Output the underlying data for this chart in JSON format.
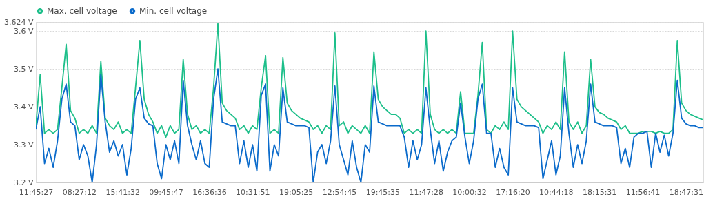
{
  "chart_data": {
    "type": "line",
    "categories": [
      "11:45:27",
      null,
      null,
      null,
      null,
      null,
      null,
      null,
      null,
      null,
      "08:27:12",
      null,
      null,
      null,
      null,
      null,
      null,
      null,
      null,
      null,
      "15:41:32",
      null,
      null,
      null,
      null,
      null,
      null,
      null,
      null,
      null,
      "09:45:47",
      null,
      null,
      null,
      null,
      null,
      null,
      null,
      null,
      null,
      "16:36:36",
      null,
      null,
      null,
      null,
      null,
      null,
      null,
      null,
      null,
      "10:31:51",
      null,
      null,
      null,
      null,
      null,
      null,
      null,
      null,
      null,
      "19:05:25",
      null,
      null,
      null,
      null,
      null,
      null,
      null,
      null,
      null,
      "12:54:45",
      null,
      null,
      null,
      null,
      null,
      null,
      null,
      null,
      null,
      "19:45:35",
      null,
      null,
      null,
      null,
      null,
      null,
      null,
      null,
      null,
      "11:47:28",
      null,
      null,
      null,
      null,
      null,
      null,
      null,
      null,
      null,
      "10:00:32",
      null,
      null,
      null,
      null,
      null,
      null,
      null,
      null,
      null,
      "17:16:20",
      null,
      null,
      null,
      null,
      null,
      null,
      null,
      null,
      null,
      "10:44:18",
      null,
      null,
      null,
      null,
      null,
      null,
      null,
      null,
      null,
      "18:15:31",
      null,
      null,
      null,
      null,
      null,
      null,
      null,
      null,
      null,
      "11:56:41",
      null,
      null,
      null,
      null,
      null,
      null,
      null,
      null,
      null,
      "18:47:31",
      null,
      null,
      null,
      null
    ],
    "series": [
      {
        "name": "Max. cell voltage",
        "color": "#1dbf8a",
        "values": [
          3.35,
          3.485,
          3.33,
          3.34,
          3.33,
          3.34,
          3.45,
          3.565,
          3.39,
          3.37,
          3.33,
          3.34,
          3.33,
          3.35,
          3.33,
          3.52,
          3.37,
          3.35,
          3.34,
          3.36,
          3.33,
          3.34,
          3.33,
          3.45,
          3.575,
          3.42,
          3.38,
          3.36,
          3.33,
          3.35,
          3.32,
          3.35,
          3.33,
          3.34,
          3.525,
          3.38,
          3.34,
          3.35,
          3.33,
          3.34,
          3.33,
          3.45,
          3.62,
          3.41,
          3.39,
          3.38,
          3.37,
          3.34,
          3.35,
          3.33,
          3.35,
          3.34,
          3.45,
          3.535,
          3.33,
          3.34,
          3.33,
          3.53,
          3.41,
          3.39,
          3.38,
          3.37,
          3.365,
          3.36,
          3.34,
          3.35,
          3.33,
          3.35,
          3.34,
          3.595,
          3.35,
          3.36,
          3.33,
          3.35,
          3.34,
          3.33,
          3.35,
          3.33,
          3.545,
          3.42,
          3.4,
          3.39,
          3.38,
          3.38,
          3.37,
          3.33,
          3.34,
          3.33,
          3.34,
          3.33,
          3.6,
          3.38,
          3.34,
          3.33,
          3.34,
          3.33,
          3.34,
          3.33,
          3.44,
          3.33,
          3.33,
          3.33,
          3.43,
          3.57,
          3.34,
          3.33,
          3.35,
          3.34,
          3.36,
          3.34,
          3.6,
          3.42,
          3.4,
          3.39,
          3.38,
          3.37,
          3.36,
          3.33,
          3.35,
          3.34,
          3.36,
          3.34,
          3.545,
          3.36,
          3.34,
          3.36,
          3.33,
          3.35,
          3.525,
          3.4,
          3.385,
          3.38,
          3.37,
          3.365,
          3.36,
          3.34,
          3.35,
          3.33,
          3.33,
          3.33,
          3.335,
          3.335,
          3.335,
          3.33,
          3.335,
          3.33,
          3.33,
          3.34,
          3.575,
          3.41,
          3.39,
          3.38,
          3.375,
          3.37,
          3.365
        ]
      },
      {
        "name": "Min. cell voltage",
        "color": "#0b6bcb",
        "values": [
          3.34,
          3.4,
          3.25,
          3.29,
          3.24,
          3.31,
          3.42,
          3.46,
          3.36,
          3.35,
          3.26,
          3.3,
          3.27,
          3.2,
          3.3,
          3.485,
          3.36,
          3.28,
          3.31,
          3.27,
          3.3,
          3.22,
          3.29,
          3.42,
          3.45,
          3.37,
          3.355,
          3.35,
          3.25,
          3.21,
          3.3,
          3.26,
          3.31,
          3.25,
          3.47,
          3.35,
          3.3,
          3.26,
          3.31,
          3.25,
          3.24,
          3.42,
          3.5,
          3.36,
          3.355,
          3.35,
          3.35,
          3.25,
          3.31,
          3.24,
          3.3,
          3.23,
          3.43,
          3.46,
          3.23,
          3.3,
          3.27,
          3.45,
          3.36,
          3.355,
          3.35,
          3.35,
          3.35,
          3.345,
          3.2,
          3.28,
          3.3,
          3.25,
          3.31,
          3.455,
          3.3,
          3.26,
          3.22,
          3.31,
          3.24,
          3.2,
          3.3,
          3.28,
          3.455,
          3.36,
          3.355,
          3.35,
          3.35,
          3.35,
          3.35,
          3.32,
          3.24,
          3.31,
          3.26,
          3.3,
          3.45,
          3.34,
          3.25,
          3.31,
          3.23,
          3.28,
          3.31,
          3.32,
          3.41,
          3.32,
          3.25,
          3.31,
          3.42,
          3.46,
          3.33,
          3.33,
          3.24,
          3.29,
          3.24,
          3.22,
          3.45,
          3.36,
          3.355,
          3.35,
          3.35,
          3.35,
          3.345,
          3.21,
          3.26,
          3.31,
          3.22,
          3.27,
          3.45,
          3.33,
          3.24,
          3.3,
          3.25,
          3.31,
          3.46,
          3.36,
          3.355,
          3.35,
          3.35,
          3.35,
          3.345,
          3.25,
          3.29,
          3.24,
          3.32,
          3.33,
          3.33,
          3.335,
          3.24,
          3.33,
          3.28,
          3.325,
          3.27,
          3.33,
          3.47,
          3.37,
          3.355,
          3.35,
          3.35,
          3.345,
          3.345
        ]
      }
    ],
    "ylim": [
      3.2,
      3.624
    ],
    "yticks": [
      {
        "value": 3.2,
        "label": "3.2 V"
      },
      {
        "value": 3.3,
        "label": "3.3 V"
      },
      {
        "value": 3.4,
        "label": "3.4 V"
      },
      {
        "value": 3.5,
        "label": "3.5 V"
      },
      {
        "value": 3.6,
        "label": "3.6 V"
      },
      {
        "value": 3.624,
        "label": "3.624 V"
      }
    ],
    "grid": "y",
    "legend": "top",
    "marker": "none",
    "line_style": "solid"
  }
}
